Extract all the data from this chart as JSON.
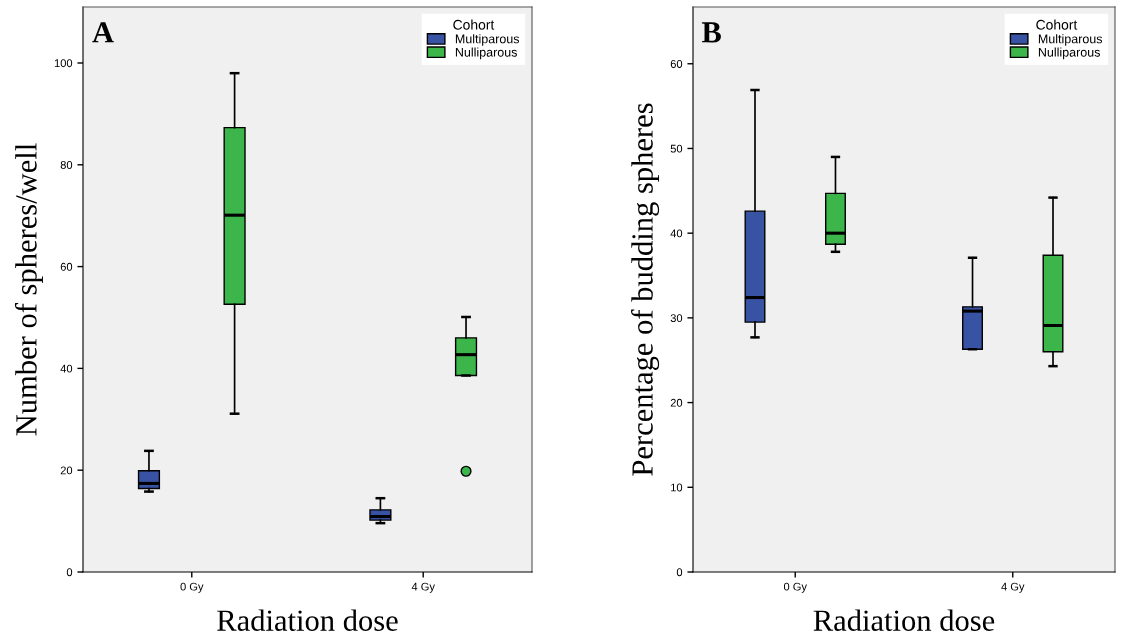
{
  "chart_data": [
    {
      "type": "box",
      "title": "A",
      "xlabel": "Radiation dose",
      "ylabel": "Number of spheres/well",
      "legend_title": "Cohort",
      "legend": "top right",
      "grid": false,
      "categories": [
        "0 Gy",
        "4 Gy"
      ],
      "ylim": [
        0,
        111
      ],
      "yticks": [
        0,
        20,
        40,
        60,
        80,
        100
      ],
      "series": [
        {
          "name": "Multiparous",
          "color": "#3953a4",
          "boxes": [
            {
              "low": 15.8,
              "q1": 16.4,
              "median": 17.4,
              "q3": 19.9,
              "high": 23.8
            },
            {
              "low": 9.6,
              "q1": 10.2,
              "median": 10.9,
              "q3": 12.2,
              "high": 14.5
            }
          ]
        },
        {
          "name": "Nulliparous",
          "color": "#3cb54a",
          "boxes": [
            {
              "low": 31.1,
              "q1": 52.6,
              "median": 70.1,
              "q3": 87.3,
              "high": 98
            },
            {
              "low": 38.6,
              "q1": 38.6,
              "median": 42.7,
              "q3": 46.0,
              "high": 50.1,
              "outliers": [
                19.8
              ]
            }
          ]
        }
      ]
    },
    {
      "type": "box",
      "title": "B",
      "xlabel": "Radiation dose",
      "ylabel": "Percentage of budding spheres",
      "legend_title": "Cohort",
      "legend": "top right",
      "grid": false,
      "categories": [
        "0 Gy",
        "4 Gy"
      ],
      "ylim": [
        0,
        66.7
      ],
      "yticks": [
        0,
        10,
        20,
        30,
        40,
        50,
        60
      ],
      "series": [
        {
          "name": "Multiparous",
          "color": "#3953a4",
          "boxes": [
            {
              "low": 27.7,
              "q1": 29.5,
              "median": 32.4,
              "q3": 42.6,
              "high": 56.9
            },
            {
              "low": 26.3,
              "q1": 26.3,
              "median": 30.8,
              "q3": 31.3,
              "high": 37.1
            }
          ]
        },
        {
          "name": "Nulliparous",
          "color": "#3cb54a",
          "boxes": [
            {
              "low": 37.8,
              "q1": 38.7,
              "median": 40.0,
              "q3": 44.7,
              "high": 49.0
            },
            {
              "low": 24.3,
              "q1": 26.0,
              "median": 29.1,
              "q3": 37.4,
              "high": 44.2
            }
          ]
        }
      ]
    }
  ]
}
